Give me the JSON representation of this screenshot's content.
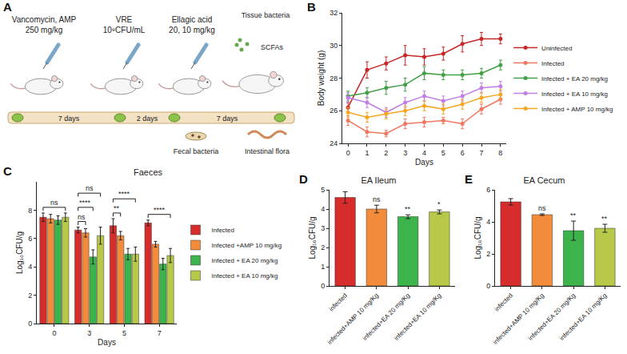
{
  "diagram": {
    "panel": "A",
    "treatments": [
      {
        "agent": "Vancomycin, AMP",
        "dose": "250 mg/kg"
      },
      {
        "agent": "VRE",
        "dose": "10⁹CFU/mL"
      },
      {
        "agent": "Ellagic acid",
        "dose": "20, 10 mg/kg"
      }
    ],
    "intervals": [
      "7 days",
      "2 days",
      "7 days"
    ],
    "samples": {
      "fecal": "Fecal bacteria",
      "tissue": "Tissue bacteria",
      "scfa": "SCFAs",
      "flora": "Intestinal flora"
    }
  },
  "chart_data": [
    {
      "panel": "B",
      "type": "line",
      "x_label": "Days",
      "y_label": "Body weight (g)",
      "x": [
        0,
        1,
        2,
        3,
        4,
        5,
        6,
        7,
        8
      ],
      "xlim": [
        -0.3,
        8.3
      ],
      "xticks": [
        0,
        1,
        2,
        3,
        4,
        5,
        6,
        7,
        8
      ],
      "ylim": [
        24,
        32
      ],
      "yticks": [
        24,
        26,
        28,
        30,
        32
      ],
      "grid": false,
      "legend": "right",
      "marker": "circle",
      "series": [
        {
          "name": "Uninfected",
          "color": "#c62828",
          "values": [
            26.2,
            28.5,
            28.9,
            29.4,
            29.3,
            29.5,
            30.1,
            30.4,
            30.4
          ],
          "errors": [
            0.3,
            0.5,
            0.4,
            0.6,
            0.5,
            0.4,
            0.5,
            0.4,
            0.3
          ]
        },
        {
          "name": "Infected",
          "color": "#f07860",
          "values": [
            25.4,
            24.7,
            24.6,
            25.2,
            25.3,
            25.4,
            25.2,
            26.1,
            26.7
          ],
          "errors": [
            0.3,
            0.3,
            0.2,
            0.3,
            0.3,
            0.2,
            0.3,
            0.3,
            0.3
          ]
        },
        {
          "name": "Infected + EA 20 mg/kg",
          "color": "#43a047",
          "values": [
            26.9,
            27.1,
            27.4,
            27.6,
            28.3,
            28.2,
            28.2,
            28.3,
            28.8
          ],
          "errors": [
            0.3,
            0.3,
            0.4,
            0.4,
            0.4,
            0.3,
            0.3,
            0.3,
            0.3
          ]
        },
        {
          "name": "Infected + EA 10 mg/kg",
          "color": "#c27ee6",
          "values": [
            26.8,
            26.5,
            25.9,
            26.5,
            26.9,
            26.6,
            26.9,
            27.4,
            27.5
          ],
          "errors": [
            0.3,
            0.3,
            0.3,
            0.3,
            0.3,
            0.3,
            0.3,
            0.3,
            0.3
          ]
        },
        {
          "name": "Infected + AMP 10 mg/kg",
          "color": "#f5a623",
          "values": [
            25.9,
            25.6,
            25.8,
            26.0,
            26.3,
            26.1,
            26.4,
            26.8,
            27.0
          ],
          "errors": [
            0.3,
            0.3,
            0.3,
            0.3,
            0.3,
            0.3,
            0.3,
            0.3,
            0.3
          ]
        }
      ]
    },
    {
      "panel": "C",
      "type": "bar",
      "title": "Faeces",
      "x_label": "Days",
      "y_label": "Log₁₀CFU/g",
      "categories": [
        "0",
        "3",
        "5",
        "7"
      ],
      "ylim": [
        0,
        10
      ],
      "yticks": [
        0,
        2,
        4,
        6,
        8
      ],
      "grid": false,
      "legend": "right",
      "series": [
        {
          "name": "Infected",
          "color": "#d62c2c",
          "values": [
            7.5,
            6.6,
            6.9,
            7.1
          ],
          "errors": [
            0.3,
            0.2,
            0.5,
            0.2
          ]
        },
        {
          "name": "Infected +AMP 10 mg/kg",
          "color": "#f28c3a",
          "values": [
            7.4,
            6.4,
            6.2,
            5.6
          ],
          "errors": [
            0.3,
            0.3,
            0.3,
            0.2
          ]
        },
        {
          "name": "Infected + EA 20 mg/kg",
          "color": "#3cb44b",
          "values": [
            7.3,
            4.7,
            4.9,
            4.2
          ],
          "errors": [
            0.3,
            0.5,
            0.4,
            0.4
          ]
        },
        {
          "name": "Infected + EA 10 mg/kg",
          "color": "#b8c94a",
          "values": [
            7.5,
            6.2,
            4.9,
            4.8
          ],
          "errors": [
            0.3,
            0.6,
            0.5,
            0.5
          ]
        }
      ],
      "annotations": [
        {
          "category": "0",
          "text": "ns",
          "compare": [
            "Infected",
            "Infected + EA 10 mg/kg"
          ]
        },
        {
          "category": "3",
          "text": "ns",
          "compare": [
            "Infected",
            "Infected +AMP 10 mg/kg"
          ]
        },
        {
          "category": "3",
          "text": "****",
          "compare": [
            "Infected",
            "Infected + EA 20 mg/kg"
          ]
        },
        {
          "category": "3",
          "text": "ns",
          "compare": [
            "Infected",
            "Infected + EA 10 mg/kg"
          ]
        },
        {
          "category": "5",
          "text": "**",
          "compare": [
            "Infected",
            "Infected +AMP 10 mg/kg"
          ]
        },
        {
          "category": "5",
          "text": "****",
          "compare": [
            "Infected",
            "Infected + EA 10 mg/kg"
          ]
        },
        {
          "category": "7",
          "text": "****",
          "compare": [
            "Infected",
            "Infected + EA 10 mg/kg"
          ]
        }
      ]
    },
    {
      "panel": "D",
      "type": "bar",
      "title": "EA Ileum",
      "y_label": "Log₁₀CFU/g",
      "categories": [
        "infected",
        "infected+AMP 10 mg/Kg",
        "infected+EA 20 mg/Kg",
        "infected+EA 10 mg/Kg"
      ],
      "values": [
        4.6,
        4.0,
        3.6,
        3.85
      ],
      "errors": [
        0.3,
        0.2,
        0.1,
        0.1
      ],
      "colors": [
        "#d62c2c",
        "#f28c3a",
        "#3cb44b",
        "#b8c94a"
      ],
      "significance": [
        null,
        "ns",
        "**",
        "*"
      ],
      "ylim": [
        0,
        5
      ],
      "yticks": [
        0,
        1,
        2,
        3,
        4,
        5
      ],
      "grid": false
    },
    {
      "panel": "E",
      "type": "bar",
      "title": "EA Cecum",
      "y_label": "Log₁₀CFU/g",
      "categories": [
        "infected",
        "infected+AMP 10 mg/Kg",
        "infected+EA 20 mg/Kg",
        "infected+EA 10 mg/Kg"
      ],
      "values": [
        5.25,
        4.45,
        3.45,
        3.6
      ],
      "errors": [
        0.2,
        0.05,
        0.6,
        0.25
      ],
      "colors": [
        "#d62c2c",
        "#f28c3a",
        "#3cb44b",
        "#b8c94a"
      ],
      "significance": [
        null,
        "ns",
        "**",
        "**"
      ],
      "ylim": [
        0,
        6
      ],
      "yticks": [
        0,
        2,
        4,
        6
      ],
      "grid": false
    }
  ]
}
